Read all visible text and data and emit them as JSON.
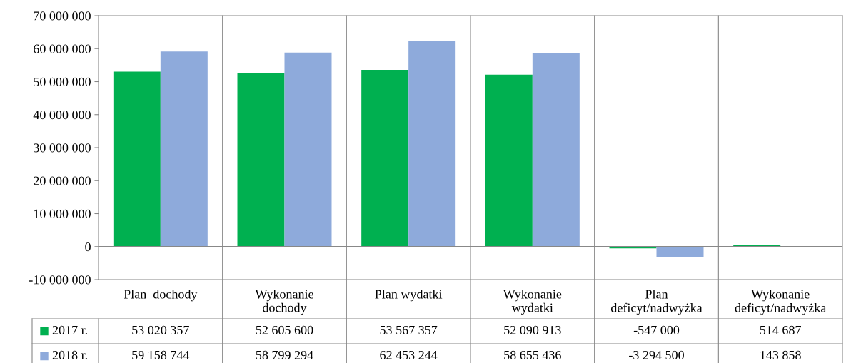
{
  "chart_data": {
    "type": "bar",
    "categories": [
      "Plan  dochody",
      "Wykonanie\ndochody",
      "Plan wydatki",
      "Wykonanie\nwydatki",
      "Plan\ndeficyt/nadwyżka",
      "Wykonanie\ndeficyt/nadwyżka"
    ],
    "series": [
      {
        "name": "2017 r.",
        "color": "#00b050",
        "values": [
          53020357,
          52605600,
          53567357,
          52090913,
          -547000,
          514687
        ]
      },
      {
        "name": "2018 r.",
        "color": "#8eaadb",
        "values": [
          59158744,
          58799294,
          62453244,
          58655436,
          -3294500,
          143858
        ]
      }
    ],
    "ylim": [
      -10000000,
      70000000
    ],
    "yticks": [
      {
        "value": -10000000,
        "label": "-10 000 000"
      },
      {
        "value": 0,
        "label": "0"
      },
      {
        "value": 10000000,
        "label": "10 000 000"
      },
      {
        "value": 20000000,
        "label": "20 000 000"
      },
      {
        "value": 30000000,
        "label": "30 000 000"
      },
      {
        "value": 40000000,
        "label": "40 000 000"
      },
      {
        "value": 50000000,
        "label": "50 000 000"
      },
      {
        "value": 60000000,
        "label": "60 000 000"
      },
      {
        "value": 70000000,
        "label": "70 000 000"
      }
    ],
    "grid": false,
    "legend": "bottom",
    "data_labels": true
  }
}
